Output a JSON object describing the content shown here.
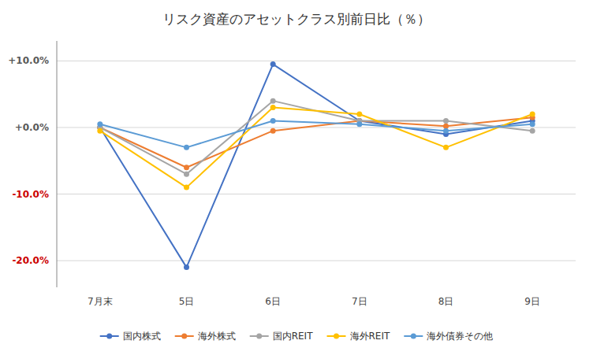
{
  "chart_data": {
    "type": "line",
    "title": "リスク資産のアセットクラス別前日比（％）",
    "categories": [
      "7月末",
      "5日",
      "6日",
      "7日",
      "8日",
      "9日"
    ],
    "series": [
      {
        "name": "国内株式",
        "color": "#4472C4",
        "marker": "circle",
        "values": [
          0.0,
          -21.0,
          9.5,
          1.0,
          -1.0,
          1.0
        ]
      },
      {
        "name": "海外株式",
        "color": "#ED7D31",
        "marker": "circle",
        "values": [
          0.0,
          -6.0,
          -0.5,
          1.0,
          0.2,
          1.5
        ]
      },
      {
        "name": "国内REIT",
        "color": "#A5A5A5",
        "marker": "circle",
        "values": [
          0.0,
          -7.0,
          4.0,
          1.0,
          1.0,
          -0.5
        ]
      },
      {
        "name": "海外REIT",
        "color": "#FFC000",
        "marker": "circle",
        "values": [
          -0.5,
          -9.0,
          3.0,
          2.0,
          -3.0,
          2.0
        ]
      },
      {
        "name": "海外債券その他",
        "color": "#5B9BD5",
        "marker": "circle",
        "values": [
          0.5,
          -3.0,
          1.0,
          0.5,
          -0.5,
          0.5
        ]
      }
    ],
    "ylim": [
      -24,
      13
    ],
    "yticks": [
      {
        "value": -20.0,
        "label": "-20.0%",
        "color": "#CC0000"
      },
      {
        "value": -10.0,
        "label": "-10.0%",
        "color": "#CC0000"
      },
      {
        "value": 0.0,
        "label": "+0.0%",
        "color": "#595959"
      },
      {
        "value": 10.0,
        "label": "+10.0%",
        "color": "#595959"
      }
    ],
    "grid": true,
    "legend": "bottom"
  }
}
